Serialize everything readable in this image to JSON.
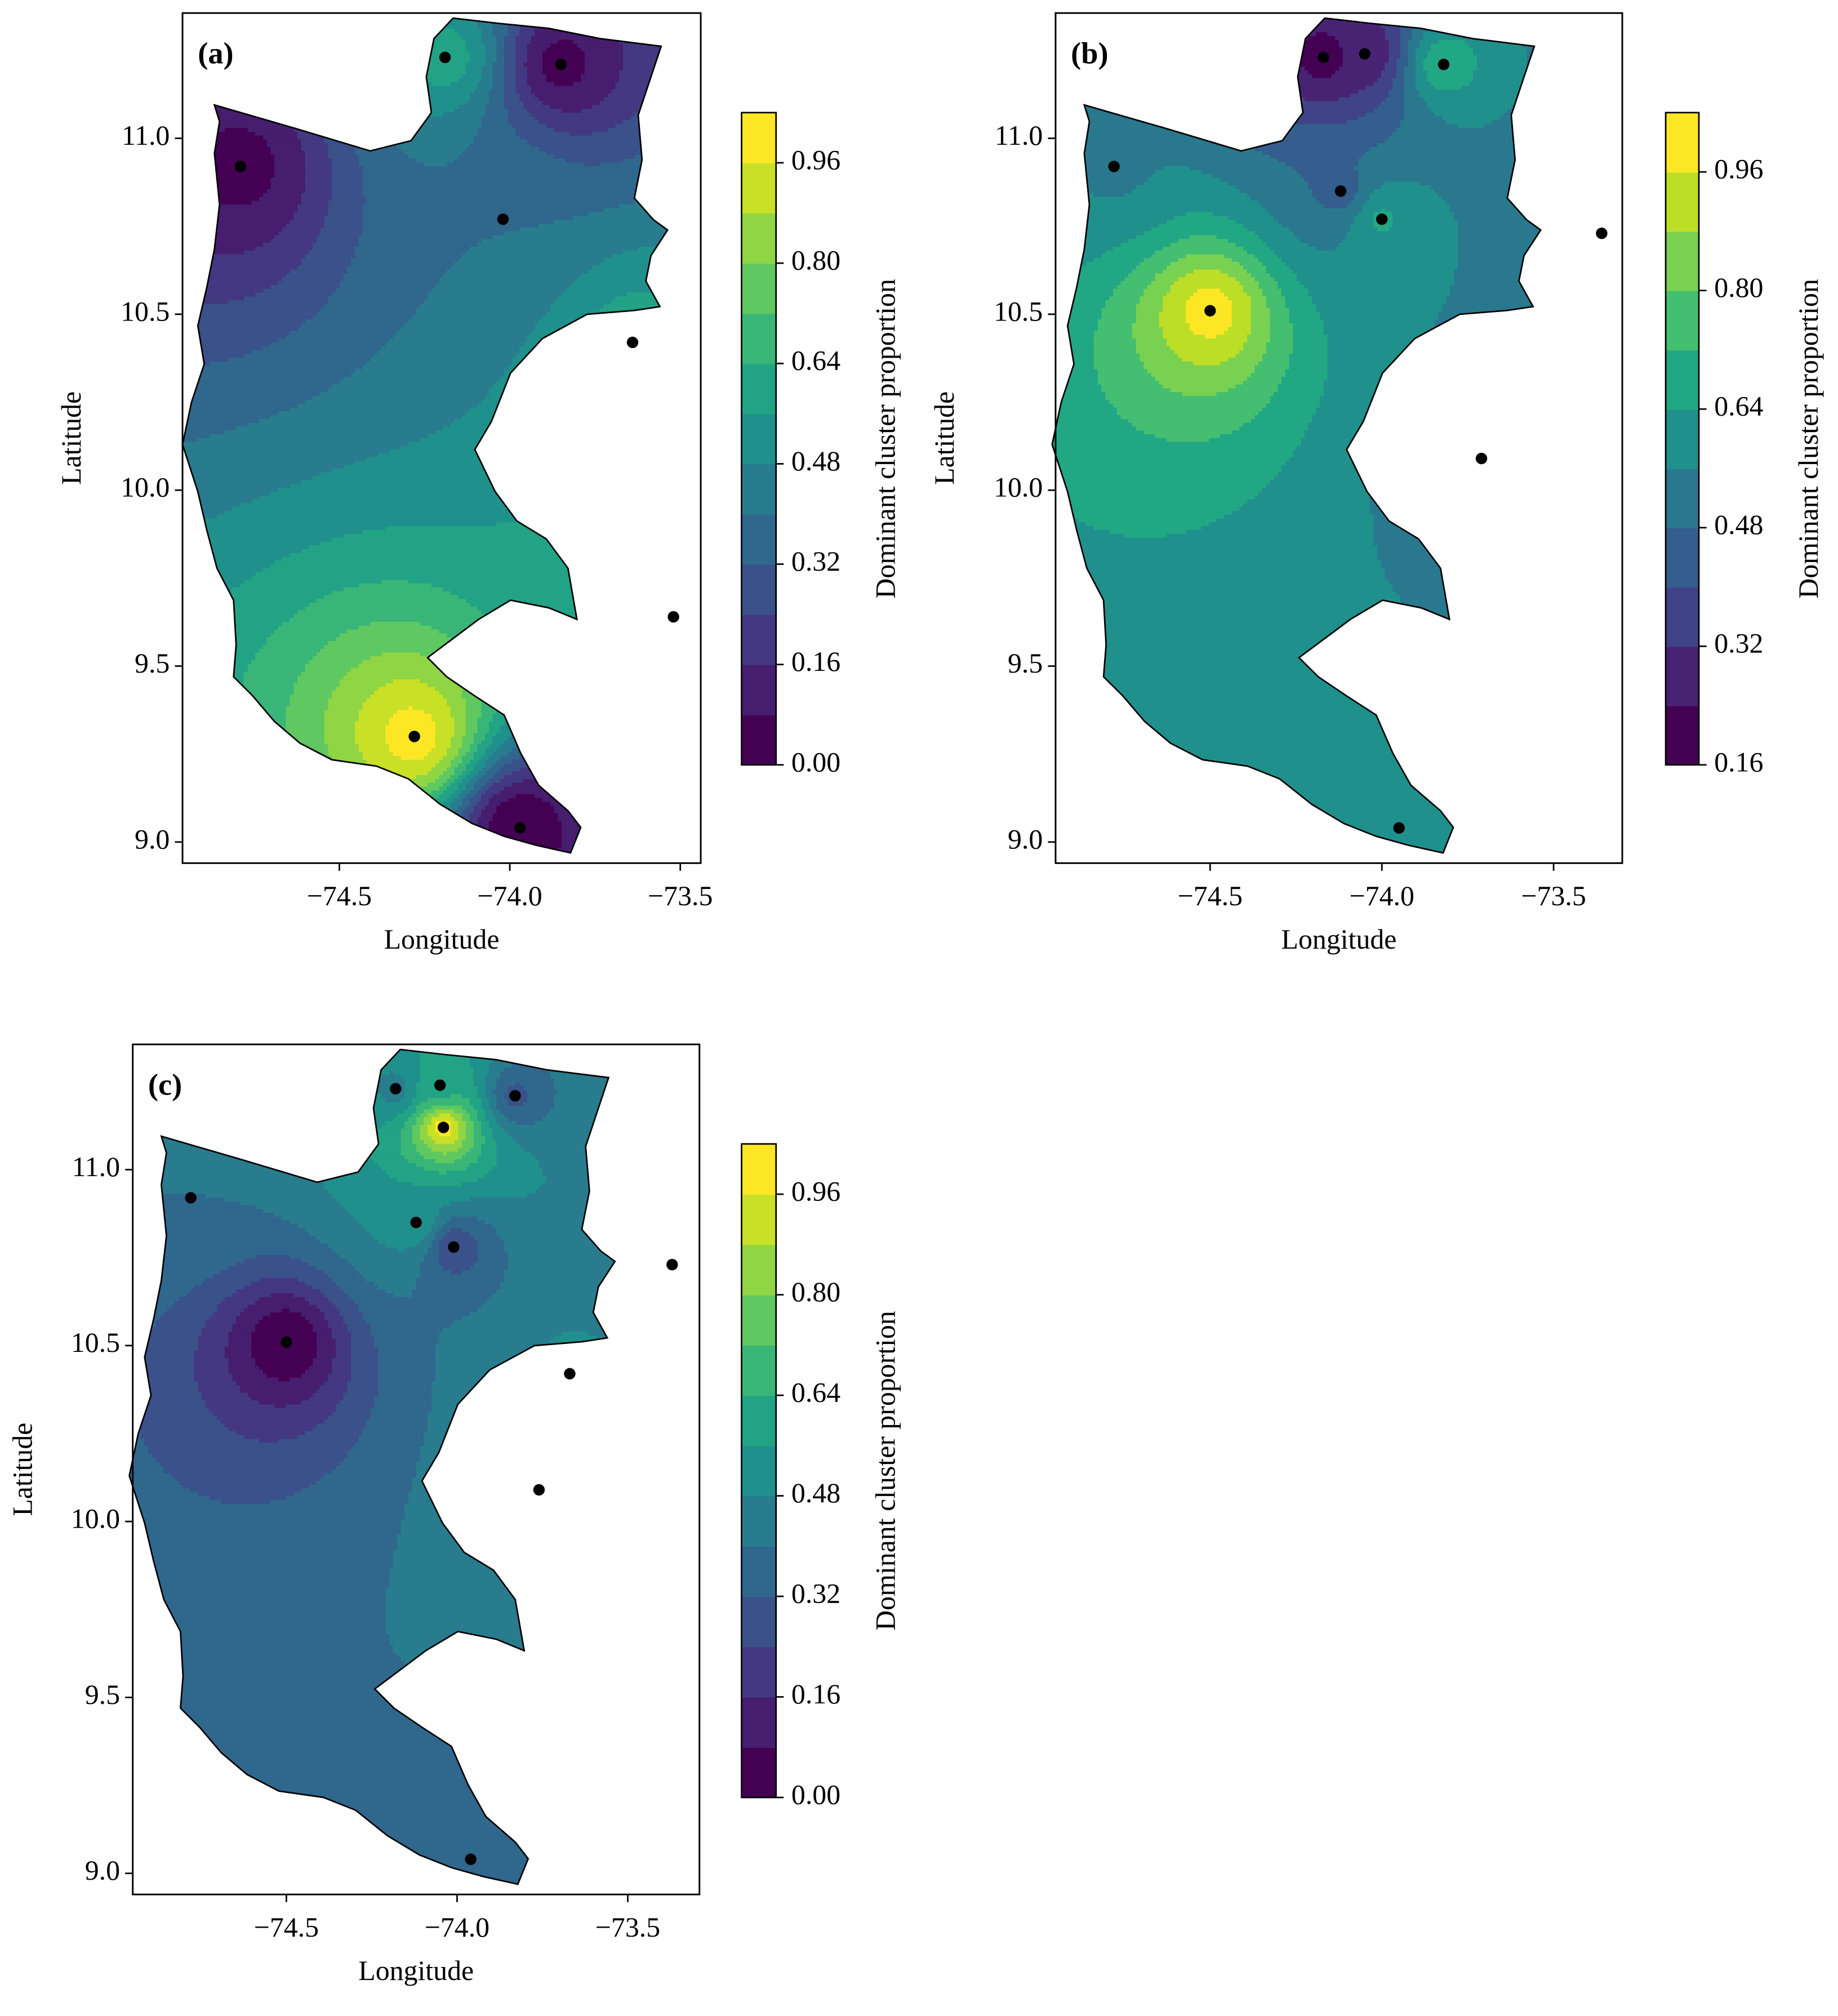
{
  "chart_data": [
    {
      "type": "contour",
      "panel_label": "(a)",
      "xlabel": "Longitude",
      "ylabel": "Latitude",
      "colorbar_label": "Dominant cluster proportion",
      "colormap": "viridis",
      "x": [
        -74.79,
        -74.19,
        -73.85,
        -74.02,
        -73.64,
        -73.52,
        -74.28,
        -73.97
      ],
      "y": [
        10.92,
        11.23,
        11.21,
        10.77,
        10.42,
        9.64,
        9.3,
        9.04
      ],
      "values": [
        0.05,
        0.6,
        0.05,
        0.4,
        0.6,
        0.7,
        1.0,
        0.0
      ],
      "xlim": [
        -74.96,
        -73.44
      ],
      "ylim": [
        8.94,
        11.356
      ],
      "xticks": [
        {
          "value": -74.5,
          "label": "−74.5"
        },
        {
          "value": -74.0,
          "label": "−74.0"
        },
        {
          "value": -73.5,
          "label": "−73.5"
        }
      ],
      "yticks": [
        {
          "value": 9.0,
          "label": "9.0"
        },
        9.5,
        {
          "value": 10.0,
          "label": "10.0"
        },
        10.5,
        {
          "value": 11.0,
          "label": "11.0"
        }
      ],
      "levels": [
        0,
        0.08,
        0.16,
        0.24,
        0.32,
        0.4,
        0.48,
        0.56,
        0.64,
        0.72,
        0.8,
        0.88,
        0.96,
        1.04
      ],
      "cticks": [
        {
          "value": 0,
          "label": "0.00"
        },
        0.16,
        0.32,
        0.48,
        0.64,
        {
          "value": 0.8,
          "label": "0.80"
        },
        0.96
      ]
    },
    {
      "type": "contour",
      "panel_label": "(b)",
      "xlabel": "Longitude",
      "ylabel": "Latitude",
      "colorbar_label": "Dominant cluster proportion",
      "colormap": "viridis",
      "x": [
        -74.78,
        -74.17,
        -74.05,
        -73.82,
        -74.12,
        -74.0,
        -74.5,
        -73.36,
        -73.71,
        -73.95
      ],
      "y": [
        10.92,
        11.23,
        11.24,
        11.21,
        10.85,
        10.77,
        10.51,
        10.73,
        10.09,
        9.04
      ],
      "values": [
        0.55,
        0.2,
        0.25,
        0.7,
        0.45,
        0.65,
        1.0,
        0.5,
        0.5,
        0.6
      ],
      "xlim": [
        -74.95,
        -73.3
      ],
      "ylim": [
        8.94,
        11.356
      ],
      "xticks": [
        {
          "value": -74.5,
          "label": "−74.5"
        },
        {
          "value": -74.0,
          "label": "−74.0"
        },
        {
          "value": -73.5,
          "label": "−73.5"
        }
      ],
      "yticks": [
        {
          "value": 9.0,
          "label": "9.0"
        },
        9.5,
        {
          "value": 10.0,
          "label": "10.0"
        },
        10.5,
        {
          "value": 11.0,
          "label": "11.0"
        }
      ],
      "levels": [
        0.16,
        0.24,
        0.32,
        0.4,
        0.48,
        0.56,
        0.64,
        0.72,
        0.8,
        0.88,
        0.96,
        1.04
      ],
      "cticks": [
        0.16,
        0.32,
        0.48,
        0.64,
        {
          "value": 0.8,
          "label": "0.80"
        },
        0.96
      ]
    },
    {
      "type": "contour",
      "panel_label": "(c)",
      "xlabel": "Longitude",
      "ylabel": "Latitude",
      "colorbar_label": "Dominant cluster proportion",
      "colormap": "viridis",
      "x": [
        -74.78,
        -74.18,
        -74.05,
        -73.83,
        -74.04,
        -74.12,
        -74.01,
        -74.5,
        -73.37,
        -73.67,
        -73.76,
        -73.96
      ],
      "y": [
        10.92,
        11.23,
        11.24,
        11.21,
        11.12,
        10.85,
        10.78,
        10.51,
        10.73,
        10.42,
        10.09,
        9.04
      ],
      "values": [
        0.4,
        0.45,
        0.6,
        0.3,
        1.0,
        0.55,
        0.25,
        0.0,
        0.45,
        0.5,
        0.45,
        0.35
      ],
      "xlim": [
        -74.95,
        -73.29
      ],
      "ylim": [
        8.94,
        11.356
      ],
      "xticks": [
        {
          "value": -74.5,
          "label": "−74.5"
        },
        {
          "value": -74.0,
          "label": "−74.0"
        },
        {
          "value": -73.5,
          "label": "−73.5"
        }
      ],
      "yticks": [
        {
          "value": 9.0,
          "label": "9.0"
        },
        9.5,
        {
          "value": 10.0,
          "label": "10.0"
        },
        10.5,
        {
          "value": 11.0,
          "label": "11.0"
        }
      ],
      "levels": [
        0,
        0.08,
        0.16,
        0.24,
        0.32,
        0.4,
        0.48,
        0.56,
        0.64,
        0.72,
        0.8,
        0.88,
        0.96,
        1.04
      ],
      "cticks": [
        {
          "value": 0,
          "label": "0.00"
        },
        0.16,
        0.32,
        0.48,
        0.64,
        {
          "value": 0.8,
          "label": "0.80"
        },
        0.96
      ]
    }
  ]
}
